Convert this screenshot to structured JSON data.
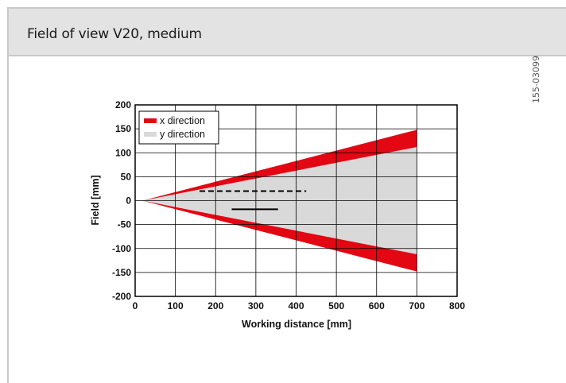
{
  "header": {
    "title": "Field of view V20, medium"
  },
  "doc_id": "155-03099",
  "colors": {
    "x_direction": "#e30613",
    "y_direction": "#d9d9d9",
    "grid": "#000000"
  },
  "chart_data": {
    "type": "area",
    "xlabel": "Working distance [mm]",
    "ylabel": "Field [mm]",
    "xlim": [
      0,
      800
    ],
    "ylim": [
      -200,
      200
    ],
    "x_ticks": [
      0,
      100,
      200,
      300,
      400,
      500,
      600,
      700,
      800
    ],
    "y_ticks": [
      200,
      150,
      100,
      50,
      0,
      -50,
      -100,
      -150,
      -200
    ],
    "grid": true,
    "legend_position": "top-left",
    "series": [
      {
        "name": "x direction",
        "x": [
          18,
          700
        ],
        "upper": [
          0,
          148
        ],
        "lower": [
          0,
          -148
        ]
      },
      {
        "name": "y direction",
        "x": [
          18,
          700
        ],
        "upper": [
          0,
          112
        ],
        "lower": [
          0,
          -112
        ]
      }
    ],
    "markers": [
      {
        "style": "dashed",
        "x": [
          160,
          425
        ],
        "y": 20
      },
      {
        "style": "solid",
        "x": [
          240,
          355
        ],
        "y": -18
      }
    ]
  }
}
